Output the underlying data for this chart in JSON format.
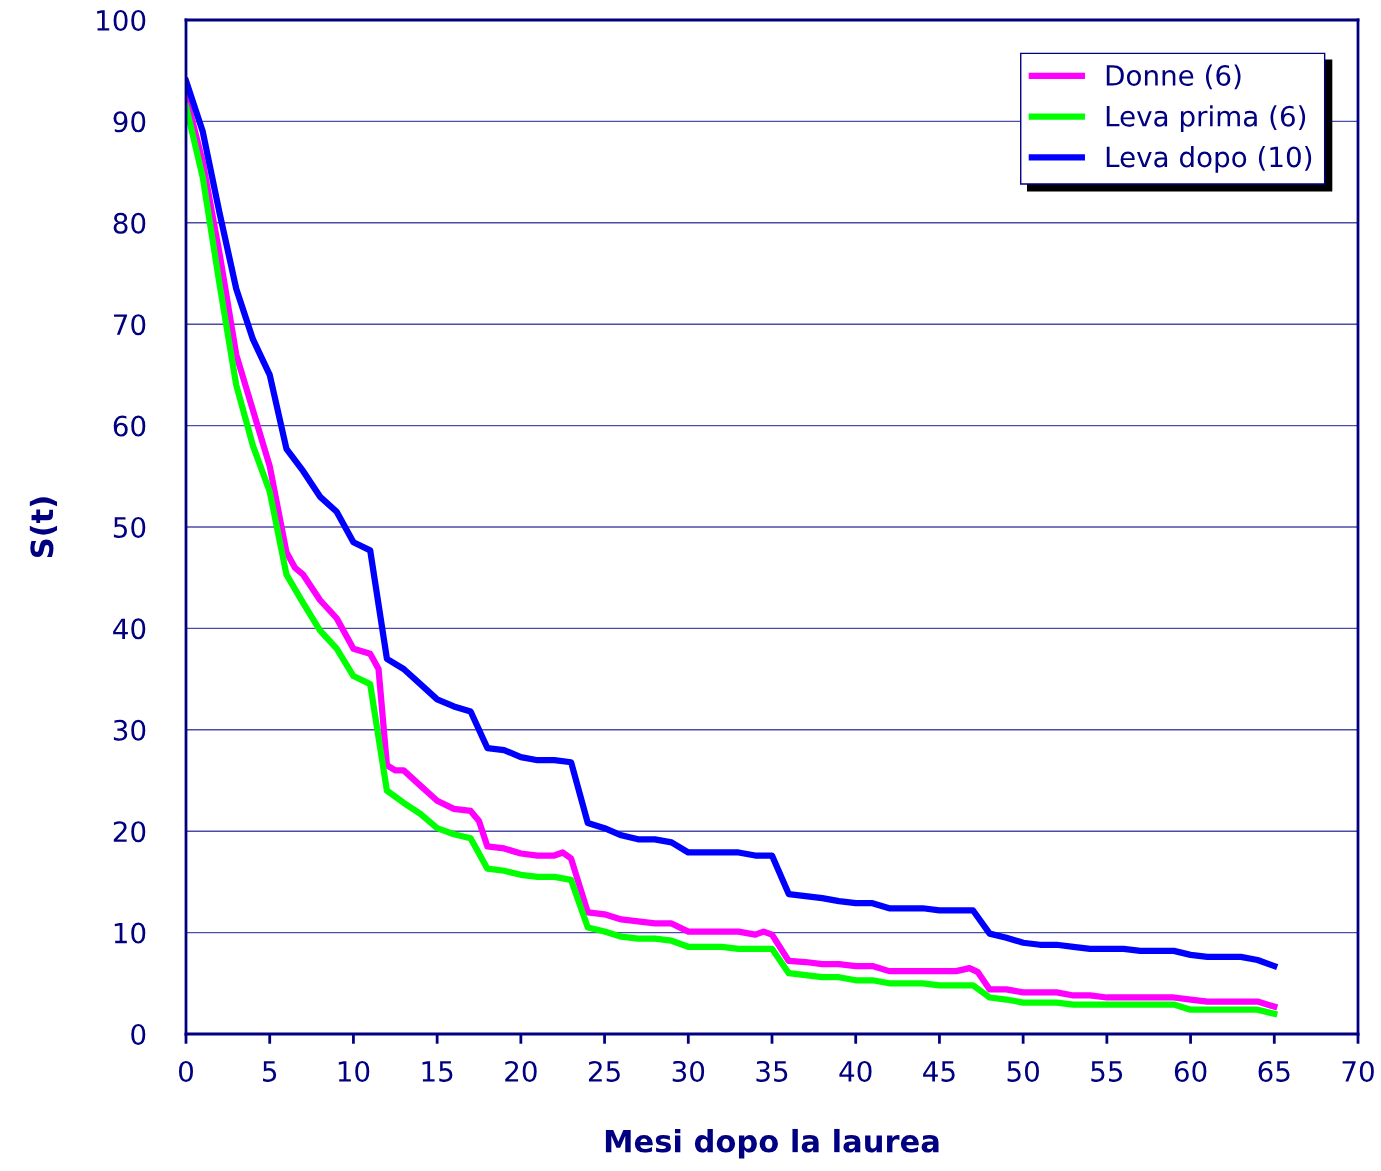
{
  "chart_data": {
    "type": "line",
    "xlabel": "Mesi dopo la laurea",
    "ylabel": "S(t)",
    "xlim": [
      0,
      70
    ],
    "xticks": [
      0,
      5,
      10,
      15,
      20,
      25,
      30,
      35,
      40,
      45,
      50,
      55,
      60,
      65,
      70
    ],
    "ylim": [
      0,
      100
    ],
    "yticks": [
      0,
      10,
      20,
      30,
      40,
      50,
      60,
      70,
      80,
      90,
      100
    ],
    "grid": "y",
    "legend": "top right",
    "marker": "none",
    "line_style": "solid",
    "series": [
      {
        "name": "Donne (6)",
        "color": "#ff00ff",
        "x": [
          0,
          1,
          2,
          3,
          4,
          5,
          6,
          6.5,
          7,
          8,
          9,
          9.5,
          10,
          11,
          11.5,
          12,
          12.5,
          13,
          14,
          15,
          16,
          17,
          17.5,
          18,
          19,
          20,
          21,
          22,
          22.5,
          23,
          24,
          25,
          26,
          27,
          28,
          29,
          30,
          31,
          32,
          33,
          34,
          34.5,
          35,
          36,
          37,
          38,
          39,
          40,
          41,
          42,
          43,
          44,
          45,
          46,
          46.8,
          47.3,
          48,
          49,
          50,
          51,
          52,
          53,
          54,
          55,
          56,
          57,
          58,
          59,
          60,
          61,
          62,
          63,
          64,
          65
        ],
        "values": [
          92.5,
          86,
          77,
          67,
          61.5,
          56,
          47.5,
          46,
          45.3,
          42.8,
          41,
          39.5,
          38,
          37.5,
          36,
          26.5,
          26,
          26,
          24.5,
          23,
          22.2,
          22,
          21,
          18.5,
          18.3,
          17.8,
          17.6,
          17.6,
          17.9,
          17.3,
          12,
          11.8,
          11.3,
          11.1,
          10.9,
          10.9,
          10.1,
          10.1,
          10.1,
          10.1,
          9.8,
          10.1,
          9.8,
          7.2,
          7.1,
          6.9,
          6.9,
          6.7,
          6.7,
          6.2,
          6.2,
          6.2,
          6.2,
          6.2,
          6.5,
          6.1,
          4.4,
          4.4,
          4.1,
          4.1,
          4.1,
          3.8,
          3.8,
          3.6,
          3.6,
          3.6,
          3.6,
          3.6,
          3.4,
          3.2,
          3.2,
          3.2,
          3.2,
          2.7
        ]
      },
      {
        "name": "Leva prima (6)",
        "color": "#00ff00",
        "x": [
          0,
          1,
          2,
          3,
          4,
          5,
          6,
          7,
          8,
          9,
          10,
          11,
          12,
          13,
          14,
          15,
          16,
          17,
          18,
          19,
          20,
          21,
          22,
          23,
          24,
          25,
          26,
          27,
          28,
          29,
          30,
          31,
          32,
          33,
          34,
          35,
          36,
          37,
          38,
          39,
          40,
          41,
          42,
          43,
          44,
          45,
          46,
          47,
          48,
          49,
          50,
          51,
          52,
          53,
          54,
          55,
          56,
          57,
          58,
          59,
          60,
          61,
          62,
          63,
          64,
          65
        ],
        "values": [
          91.5,
          84.5,
          74,
          64,
          58,
          53.5,
          45.3,
          42.5,
          39.8,
          38,
          35.3,
          34.5,
          24,
          22.8,
          21.7,
          20.3,
          19.7,
          19.3,
          16.3,
          16.1,
          15.7,
          15.5,
          15.5,
          15.2,
          10.5,
          10.1,
          9.6,
          9.4,
          9.4,
          9.2,
          8.6,
          8.6,
          8.6,
          8.4,
          8.4,
          8.4,
          6.0,
          5.8,
          5.6,
          5.6,
          5.3,
          5.3,
          5.0,
          5.0,
          5.0,
          4.8,
          4.8,
          4.8,
          3.6,
          3.4,
          3.1,
          3.1,
          3.1,
          2.9,
          2.9,
          2.9,
          2.9,
          2.9,
          2.9,
          2.9,
          2.4,
          2.4,
          2.4,
          2.4,
          2.4,
          2.0
        ]
      },
      {
        "name": "Leva dopo (10)",
        "color": "#0000ff",
        "x": [
          0,
          1,
          2,
          3,
          4,
          5,
          6,
          7,
          8,
          9,
          10,
          11,
          12,
          13,
          14,
          15,
          16,
          17,
          18,
          19,
          20,
          21,
          22,
          23,
          24,
          25,
          26,
          27,
          28,
          29,
          30,
          31,
          32,
          33,
          34,
          35,
          36,
          37,
          38,
          39,
          40,
          41,
          42,
          43,
          44,
          45,
          46,
          47,
          48,
          49,
          50,
          51,
          52,
          53,
          54,
          55,
          56,
          57,
          58,
          59,
          60,
          61,
          62,
          63,
          64,
          65
        ],
        "values": [
          94,
          89,
          81,
          73.5,
          68.5,
          65,
          57.7,
          55.5,
          53,
          51.5,
          48.5,
          47.7,
          37,
          36,
          34.5,
          33,
          32.3,
          31.8,
          28.2,
          28,
          27.3,
          27,
          27,
          26.8,
          20.8,
          20.3,
          19.6,
          19.2,
          19.2,
          18.9,
          17.9,
          17.9,
          17.9,
          17.9,
          17.6,
          17.6,
          13.8,
          13.6,
          13.4,
          13.1,
          12.9,
          12.9,
          12.4,
          12.4,
          12.4,
          12.2,
          12.2,
          12.2,
          9.9,
          9.5,
          9.0,
          8.8,
          8.8,
          8.6,
          8.4,
          8.4,
          8.4,
          8.2,
          8.2,
          8.2,
          7.8,
          7.6,
          7.6,
          7.6,
          7.3,
          6.7
        ]
      }
    ]
  }
}
